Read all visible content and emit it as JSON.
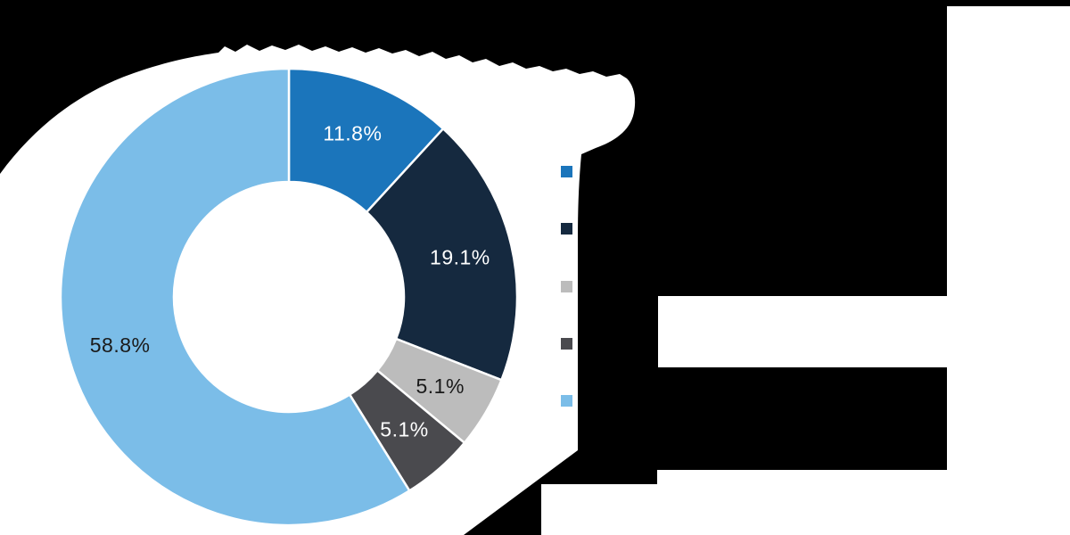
{
  "canvas": {
    "background_color": "#000000",
    "surface_color": "#ffffff"
  },
  "chart_data": {
    "type": "pie",
    "subtype": "donut",
    "direction": "clockwise",
    "start_angle_deg": 0,
    "values": [
      11.8,
      19.1,
      5.1,
      5.1,
      58.8
    ],
    "slice_labels": [
      "11.8%",
      "19.1%",
      "5.1%",
      "5.1%",
      "58.8%"
    ],
    "slice_colors": [
      "#1b75bb",
      "#15293f",
      "#bcbcbc",
      "#4a4a4e",
      "#7bbde8"
    ],
    "slice_label_colors": [
      "#ffffff",
      "#ffffff",
      "#1a1a1a",
      "#ffffff",
      "#1a1a1a"
    ],
    "legend": {
      "position": "right",
      "items": [
        {
          "color": "#1b75bb",
          "label": ""
        },
        {
          "color": "#15293f",
          "label": ""
        },
        {
          "color": "#bcbcbc",
          "label": ""
        },
        {
          "color": "#4a4a4e",
          "label": ""
        },
        {
          "color": "#7bbde8",
          "label": ""
        }
      ]
    }
  }
}
